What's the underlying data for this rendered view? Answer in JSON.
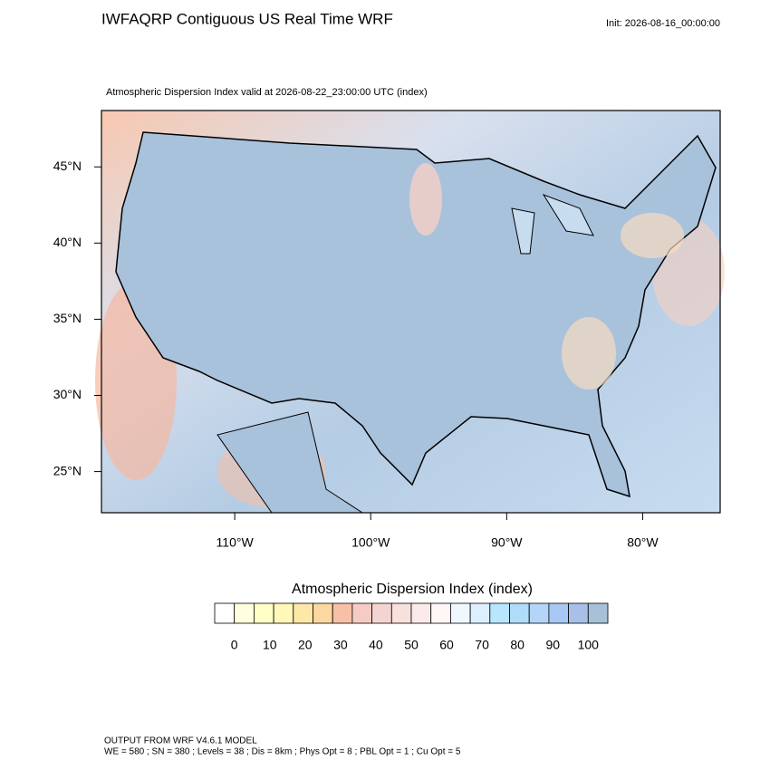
{
  "title": "IWFAQRP Contiguous US Real Time WRF",
  "init": "Init: 2026-08-16_00:00:00",
  "subtitle": "Atmospheric Dispersion Index valid at 2026-08-22_23:00:00 UTC   (index)",
  "map": {
    "xlim": [
      -119.8,
      -74.3
    ],
    "ylim": [
      22.3,
      48.7
    ],
    "xticks": [
      {
        "value": -110,
        "label": "110°W"
      },
      {
        "value": -100,
        "label": "100°W"
      },
      {
        "value": -90,
        "label": "90°W"
      },
      {
        "value": -80,
        "label": "80°W"
      }
    ],
    "yticks": [
      {
        "value": 25,
        "label": "25°N"
      },
      {
        "value": 30,
        "label": "30°N"
      },
      {
        "value": 35,
        "label": "35°N"
      },
      {
        "value": 40,
        "label": "40°N"
      },
      {
        "value": 45,
        "label": "45°N"
      }
    ]
  },
  "colorbar": {
    "title": "Atmospheric Dispersion Index  (index)",
    "ticks": [
      0,
      10,
      20,
      30,
      40,
      50,
      60,
      70,
      80,
      90,
      100
    ],
    "colors": [
      "#ffffff",
      "#ffffe0",
      "#ffffc8",
      "#fff8b8",
      "#fde8a8",
      "#fcd8a0",
      "#f8c0a8",
      "#f4ccc4",
      "#f4d4d0",
      "#f8e0dc",
      "#fceaea",
      "#fff6f6",
      "#f0f8ff",
      "#ddeeff",
      "#b8e6ff",
      "#b0dcfa",
      "#b4d4f8",
      "#a8c8f4",
      "#a8c0e8",
      "#a8c0d8"
    ]
  },
  "footer": [
    "OUTPUT FROM WRF V4.6.1 MODEL",
    "WE = 580 ; SN = 380 ; Levels = 38 ; Dis = 8km ; Phys Opt = 8 ; PBL Opt = 1 ; Cu Opt = 5"
  ]
}
